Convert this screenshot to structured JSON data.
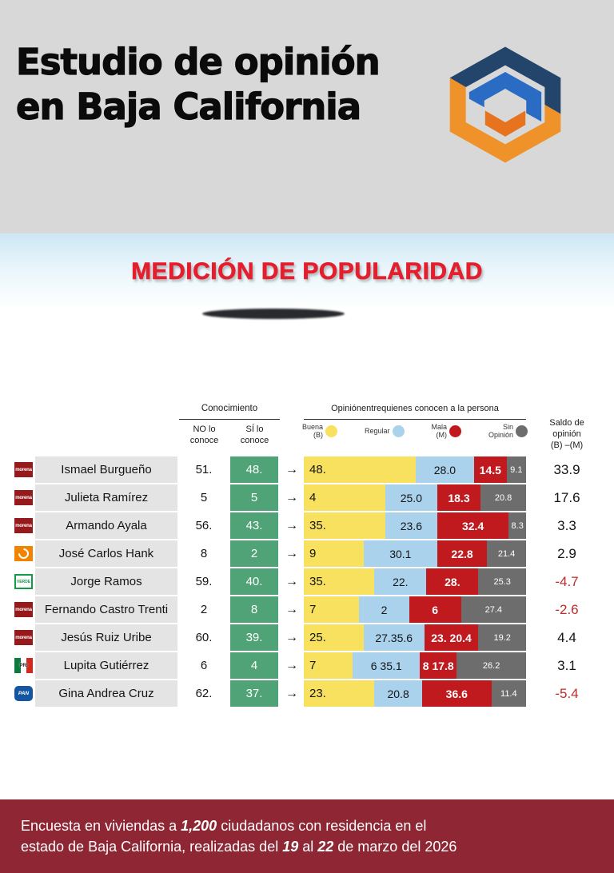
{
  "header": {
    "title_lines": [
      "Estudio de opinión",
      "en Baja California"
    ],
    "logo_icon": "hexagon-brand-logo"
  },
  "banner": {
    "title": "MEDICIÓN DE POPULARIDAD"
  },
  "table": {
    "conocimiento_header": "Conocimiento",
    "col_no_label": "NO lo\nconoce",
    "col_si_label": "SÍ lo\nconoce",
    "opinion_header": "Opiniónentrequienes conocen a la persona",
    "saldo_header": "Saldo de\nopinión\n(B) –(M)",
    "arrow_glyph": "→",
    "legend": [
      {
        "name": "buena",
        "label": "Buena\n(B)",
        "color": "#f7e15e"
      },
      {
        "name": "regular",
        "label": "Regular",
        "color": "#aad2ec"
      },
      {
        "name": "mala",
        "label": "Mala\n(M)",
        "color": "#c01a1f"
      },
      {
        "name": "sin-opinion",
        "label": "Sin\nOpinión",
        "color": "#6d6d6d"
      }
    ]
  },
  "colors": {
    "header_bg": "#d8d8d8",
    "banner_text": "#e41e2d",
    "si_cell_green": "#4fa377",
    "name_cell_gray": "#e4e4e4",
    "negative_red": "#c22a2a",
    "footer_bg": "#8e2633"
  },
  "chart_data": {
    "type": "bar",
    "stacked": true,
    "unit": "percent",
    "legend_position": "top",
    "rows": [
      {
        "party": "morena",
        "party_label": "morena",
        "name": "Ismael Burgueño",
        "no_conoce": "51.",
        "si_conoce": "48.",
        "segments": [
          {
            "label": "48.",
            "w": 49
          },
          {
            "label": "28.0",
            "w": 27
          },
          {
            "label": "14.5",
            "w": 15
          },
          {
            "label": "9.1",
            "w": 9
          }
        ],
        "saldo": "33.9",
        "saldo_negative": false
      },
      {
        "party": "morena",
        "party_label": "morena",
        "name": "Julieta Ramírez",
        "no_conoce": "5",
        "si_conoce": "5",
        "segments": [
          {
            "label": "4",
            "w": 35
          },
          {
            "label": "25.0",
            "w": 24
          },
          {
            "label": "18.3",
            "w": 20
          },
          {
            "label": "20.8",
            "w": 21
          }
        ],
        "saldo": "17.6",
        "saldo_negative": false
      },
      {
        "party": "morena",
        "party_label": "morena",
        "name": "Armando Ayala",
        "no_conoce": "56.",
        "si_conoce": "43.",
        "segments": [
          {
            "label": "35.",
            "w": 35
          },
          {
            "label": "23.6",
            "w": 24
          },
          {
            "label": "32.4",
            "w": 33
          },
          {
            "label": "8.3",
            "w": 8
          }
        ],
        "saldo": "3.3",
        "saldo_negative": false
      },
      {
        "party": "mc",
        "party_label": "",
        "name": "José Carlos Hank",
        "no_conoce": "8",
        "si_conoce": "2",
        "segments": [
          {
            "label": "9",
            "w": 25
          },
          {
            "label": "30.1",
            "w": 34
          },
          {
            "label": "22.8",
            "w": 23
          },
          {
            "label": "21.4",
            "w": 18
          }
        ],
        "saldo": "2.9",
        "saldo_negative": false
      },
      {
        "party": "verde",
        "party_label": "VERDE",
        "name": "Jorge Ramos",
        "no_conoce": "59.",
        "si_conoce": "40.",
        "segments": [
          {
            "label": "35.",
            "w": 30
          },
          {
            "label": "22.",
            "w": 24
          },
          {
            "label": "28.",
            "w": 24
          },
          {
            "label": "25.3",
            "w": 22
          }
        ],
        "saldo": "-4.7",
        "saldo_negative": true
      },
      {
        "party": "morena",
        "party_label": "morena",
        "name": "Fernando Castro Trenti",
        "no_conoce": "2",
        "si_conoce": "8",
        "segments": [
          {
            "label": "7",
            "w": 23
          },
          {
            "label": "2",
            "w": 23
          },
          {
            "label": "6",
            "w": 24
          },
          {
            "label": "27.4",
            "w": 30
          }
        ],
        "saldo": "-2.6",
        "saldo_negative": true
      },
      {
        "party": "morena",
        "party_label": "morena",
        "name": "Jesús Ruiz Uribe",
        "no_conoce": "60.",
        "si_conoce": "39.",
        "segments": [
          {
            "label": "25.",
            "w": 25
          },
          {
            "label": "27.35.6",
            "w": 28
          },
          {
            "label": "23. 20.4",
            "w": 25
          },
          {
            "label": "19.2",
            "w": 22
          }
        ],
        "saldo": "4.4",
        "saldo_negative": false
      },
      {
        "party": "pri",
        "party_label": "PRI",
        "name": "Lupita Gutiérrez",
        "no_conoce": "6",
        "si_conoce": "4",
        "segments": [
          {
            "label": "7",
            "w": 20
          },
          {
            "label": "6 35.1",
            "w": 31
          },
          {
            "label": "8 17.8",
            "w": 17
          },
          {
            "label": "26.2",
            "w": 32
          }
        ],
        "saldo": "3.1",
        "saldo_negative": false
      },
      {
        "party": "pan",
        "party_label": "PAN",
        "name": "Gina Andrea Cruz",
        "no_conoce": "62.",
        "si_conoce": "37.",
        "segments": [
          {
            "label": "23.",
            "w": 30
          },
          {
            "label": "20.8",
            "w": 22
          },
          {
            "label": "36.6",
            "w": 32
          },
          {
            "label": "11.4",
            "w": 16
          }
        ],
        "saldo": "-5.4",
        "saldo_negative": true
      }
    ]
  },
  "footer": {
    "segments": [
      {
        "text": "Encuesta en viviendas a ",
        "emphasis": false
      },
      {
        "text": "1,200",
        "emphasis": true
      },
      {
        "text": " ciudadanos con residencia en el\nestado de Baja California, realizadas del ",
        "emphasis": false
      },
      {
        "text": "19",
        "emphasis": true
      },
      {
        "text": " al ",
        "emphasis": false
      },
      {
        "text": "22",
        "emphasis": true
      },
      {
        "text": " de marzo del 2026",
        "emphasis": false
      }
    ]
  }
}
